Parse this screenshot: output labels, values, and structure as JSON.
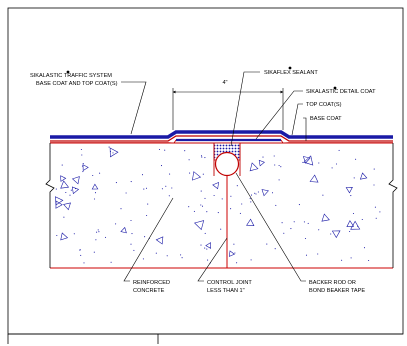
{
  "drawing": {
    "dimension": "4\"",
    "labels": {
      "traffic_system_1": "SIKALASTIC  TRAFFIC SYSTEM",
      "traffic_system_2": "BASE COAT AND TOP COAT(S)",
      "sealant": "SIKAFLEX  SEALANT",
      "detail_coat": "SIKALASTIC  DETAIL COAT",
      "top_coats": "TOP COAT(S)",
      "base_coat": "BASE COAT",
      "reinforced_1": "REINFORCED",
      "reinforced_2": "CONCRETE",
      "control_joint_1": "CONTROL JOINT",
      "control_joint_2": "LESS THAN 1\"",
      "backer_rod_1": "BACKER ROD OR",
      "backer_rod_2": "BOND BEAKER TAPE"
    }
  },
  "colors": {
    "frame": "#000000",
    "concrete_outline": "#cc0000",
    "top_coat": "#1a1aa6",
    "base_coat": "#c00000",
    "aggregate": "#1a1aa6",
    "backer_rod": "#ffffff",
    "sealant_hatch": "#1a1aa6"
  }
}
